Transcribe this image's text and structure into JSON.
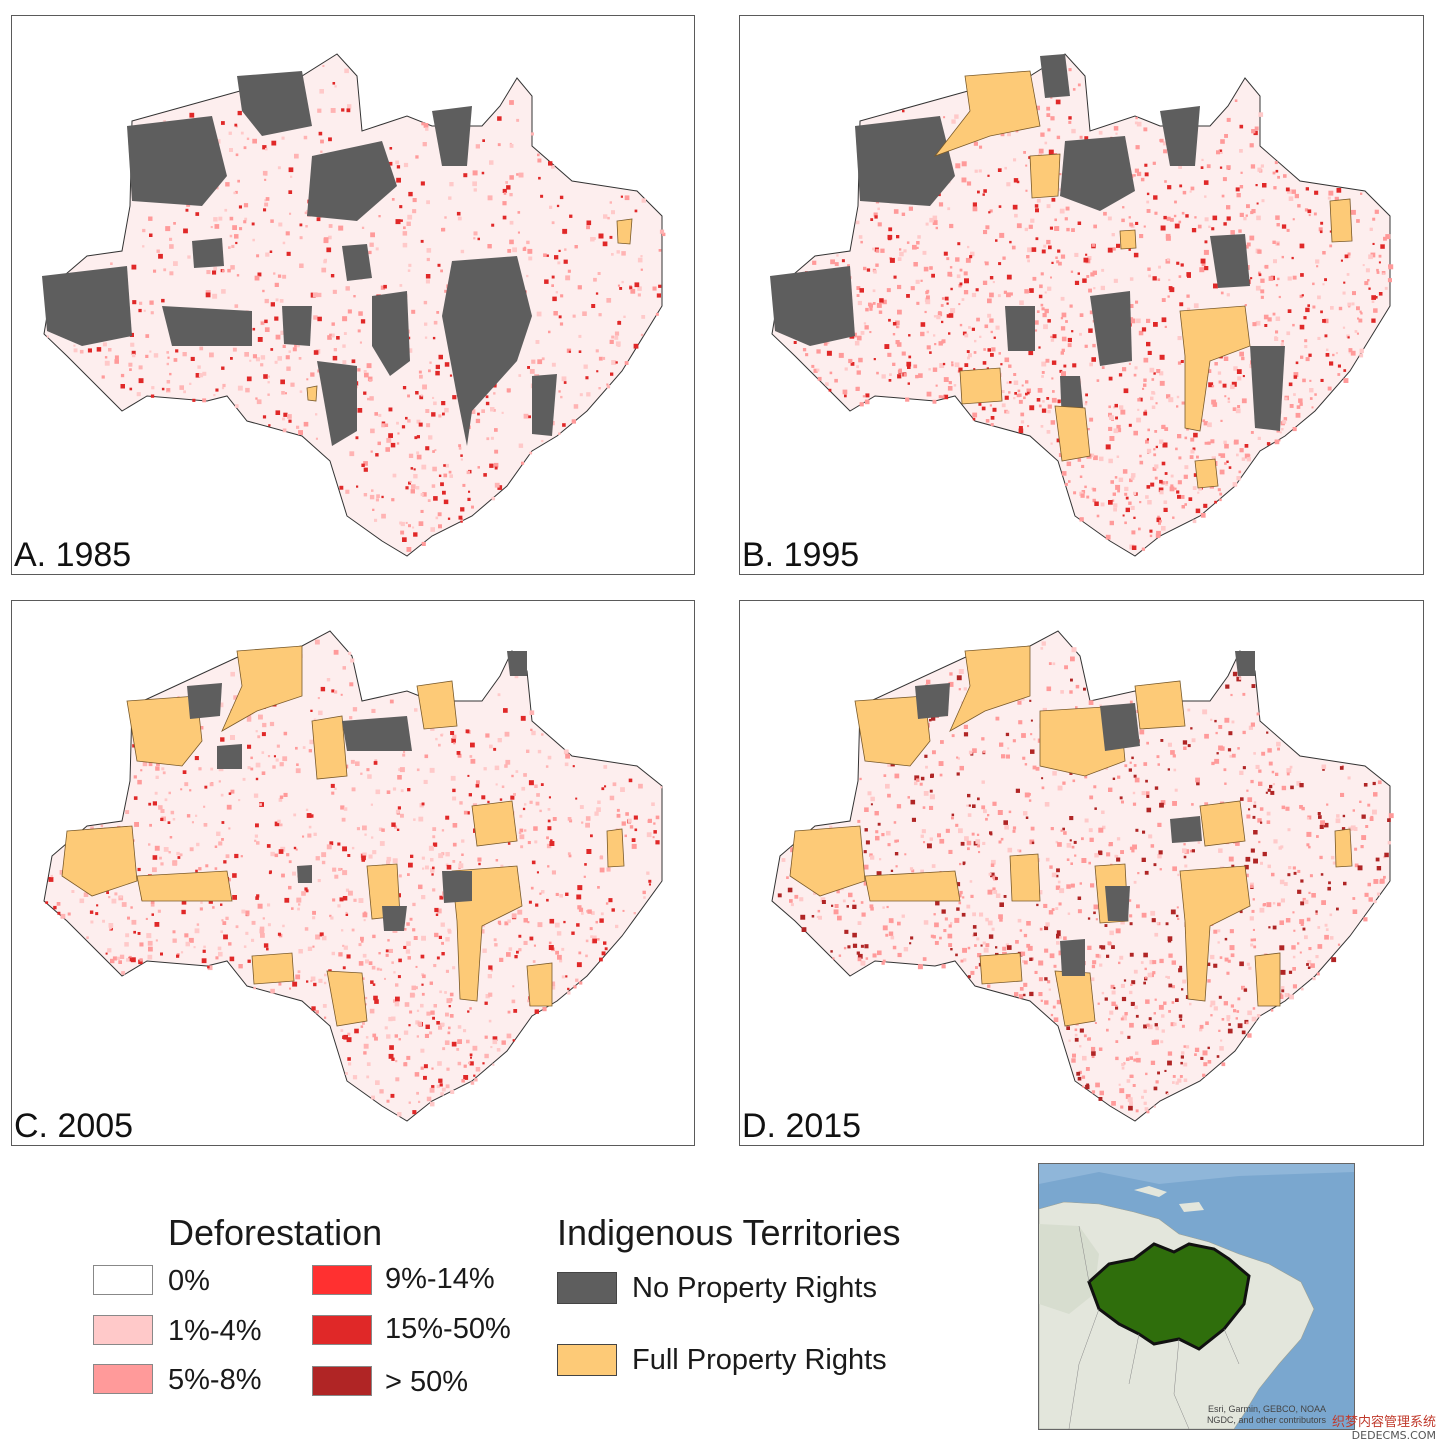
{
  "panels": [
    {
      "label": "A. 1985"
    },
    {
      "label": "B. 1995"
    },
    {
      "label": "C. 2005"
    },
    {
      "label": "D. 2015"
    }
  ],
  "legend": {
    "deforestation": {
      "title": "Deforestation",
      "classes": [
        {
          "label": "0%",
          "color": "#ffffff"
        },
        {
          "label": "1%-4%",
          "color": "#ffc9c9"
        },
        {
          "label": "5%-8%",
          "color": "#ff9a9a"
        },
        {
          "label": "9%-14%",
          "color": "#ff3030"
        },
        {
          "label": "15%-50%",
          "color": "#e02828"
        },
        {
          "label": "> 50%",
          "color": "#b02525"
        }
      ]
    },
    "indigenous": {
      "title": "Indigenous Territories",
      "classes": [
        {
          "label": "No Property Rights",
          "color": "#5e5e5e"
        },
        {
          "label": "Full Property Rights",
          "color": "#fdca77"
        }
      ]
    }
  },
  "inset": {
    "credit_line1": "Esri, Garmin, GEBCO, NOAA",
    "credit_line2": "NGDC, and other contributors",
    "region_color": "#2f6e0c",
    "ocean_color": "#7aa7cf",
    "land_color": "#e3e6dc"
  },
  "watermark": {
    "text": "织梦内容管理系统",
    "domain": "DEDECMS.COM"
  }
}
